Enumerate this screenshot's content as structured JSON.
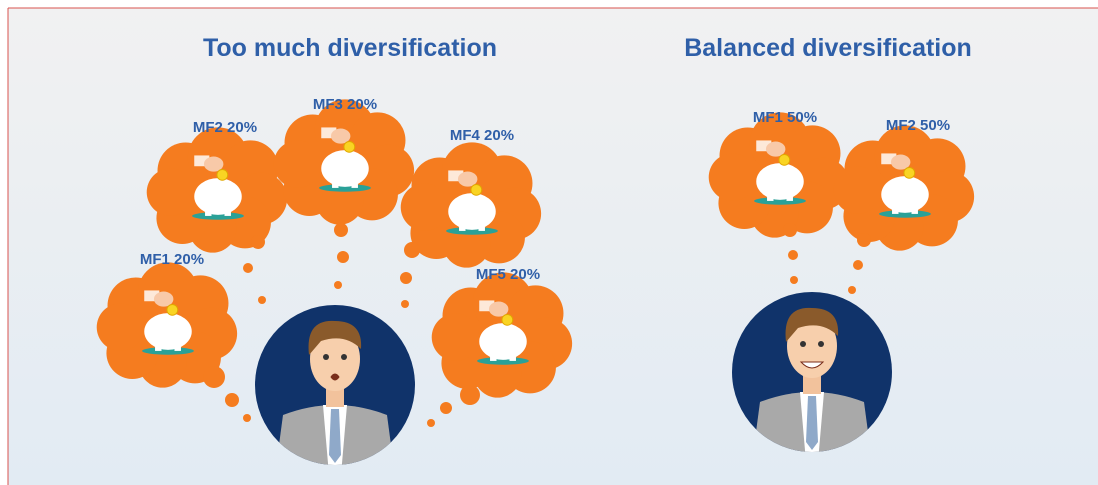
{
  "panels": [
    {
      "title": "Too much diversification",
      "bubbles": [
        {
          "label": "MF1 20%"
        },
        {
          "label": "MF2 20%"
        },
        {
          "label": "MF3 20%"
        },
        {
          "label": "MF4 20%"
        },
        {
          "label": "MF5 20%"
        }
      ]
    },
    {
      "title": "Balanced diversification",
      "bubbles": [
        {
          "label": "MF1 50%"
        },
        {
          "label": "MF2 50%"
        }
      ]
    }
  ]
}
